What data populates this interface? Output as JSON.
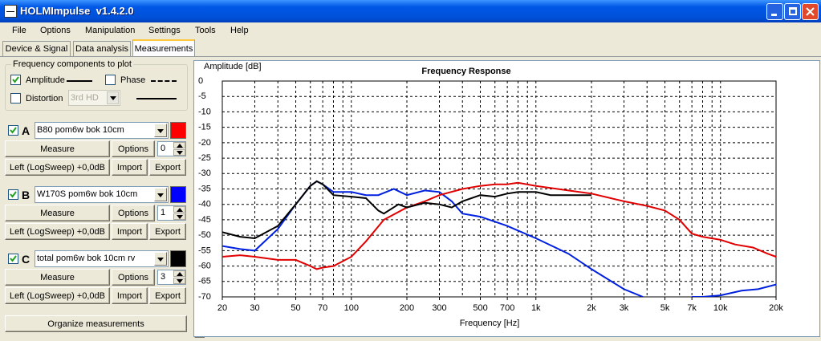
{
  "window": {
    "title": "HOLMImpulse  v1.4.2.0"
  },
  "menu": [
    "File",
    "Options",
    "Manipulation",
    "Settings",
    "Tools",
    "Help"
  ],
  "tabs": [
    "Device & Signal",
    "Data analysis",
    "Measurements"
  ],
  "components": {
    "title": "Frequency components to plot",
    "amplitude": "Amplitude",
    "phase": "Phase",
    "distortion": "Distortion",
    "distortion_type": "3rd HD"
  },
  "measurements": [
    {
      "letter": "A",
      "name": "B80 pom6w bok 10cm",
      "color": "#ff0000",
      "measure": "Measure",
      "options": "Options",
      "offset": 0,
      "source": "Left (LogSweep) +0,0dB",
      "import": "Import",
      "export": "Export"
    },
    {
      "letter": "B",
      "name": "W170S pom6w bok 10cm",
      "color": "#0000ff",
      "measure": "Measure",
      "options": "Options",
      "offset": 1,
      "source": "Left (LogSweep) +0,0dB",
      "import": "Import",
      "export": "Export"
    },
    {
      "letter": "C",
      "name": "total pom6w bok 10cm rv",
      "color": "#000000",
      "measure": "Measure",
      "options": "Options",
      "offset": 3,
      "source": "Left (LogSweep) +0,0dB",
      "import": "Import",
      "export": "Export"
    }
  ],
  "organize": "Organize measurements",
  "chart_data": {
    "type": "line",
    "title": "Frequency Response",
    "y_label": "Amplitude [dB]",
    "x_label": "Frequency [Hz]",
    "xscale": "log",
    "grid": true,
    "xlim": [
      20,
      20000
    ],
    "ylim": [
      -70,
      0
    ],
    "yticks": [
      0,
      -5,
      -10,
      -15,
      -20,
      -25,
      -30,
      -35,
      -40,
      -45,
      -50,
      -55,
      -60,
      -65,
      -70
    ],
    "xticks": [
      20,
      30,
      50,
      70,
      100,
      200,
      300,
      500,
      700,
      {
        "value": 1000,
        "label": "1k"
      },
      {
        "value": 2000,
        "label": "2k"
      },
      {
        "value": 3000,
        "label": "3k"
      },
      {
        "value": 5000,
        "label": "5k"
      },
      {
        "value": 7000,
        "label": "7k"
      },
      {
        "value": 10000,
        "label": "10k"
      },
      {
        "value": 20000,
        "label": "20k"
      }
    ],
    "xgrid": [
      20,
      30,
      40,
      50,
      60,
      70,
      80,
      90,
      100,
      200,
      300,
      400,
      500,
      600,
      700,
      800,
      900,
      1000,
      2000,
      3000,
      4000,
      5000,
      6000,
      7000,
      8000,
      9000,
      10000,
      20000
    ],
    "series": [
      {
        "color": "#e00000",
        "x": [
          20,
          25,
          30,
          40,
          50,
          60,
          65,
          70,
          80,
          100,
          120,
          150,
          200,
          250,
          300,
          400,
          500,
          600,
          700,
          800,
          1000,
          1500,
          2000,
          3000,
          4000,
          5000,
          6000,
          7000,
          8000,
          10000,
          12000,
          15000,
          18000,
          20000
        ],
        "values": [
          -57,
          -56.5,
          -57,
          -58,
          -58,
          -60,
          -61,
          -60.5,
          -60,
          -57,
          -52,
          -45,
          -41,
          -39,
          -37,
          -35,
          -34,
          -33.5,
          -33.5,
          -33,
          -34,
          -35.5,
          -36.5,
          -39,
          -40.5,
          -42,
          -45,
          -49.5,
          -50.5,
          -51.5,
          -53,
          -54,
          -56,
          -57
        ]
      },
      {
        "color": "#0020e0",
        "x": [
          20,
          25,
          30,
          40,
          50,
          60,
          65,
          70,
          80,
          100,
          120,
          140,
          170,
          200,
          250,
          300,
          350,
          400,
          500,
          700,
          1000,
          1500,
          2000,
          3000,
          3800,
          5000,
          7000,
          8000,
          10000,
          13000,
          16000,
          20000
        ],
        "values": [
          -53.5,
          -54.5,
          -55,
          -48,
          -40,
          -34,
          -32.5,
          -33.5,
          -36,
          -36,
          -37,
          -37,
          -35,
          -37,
          -35.5,
          -36,
          -39,
          -43,
          -44,
          -47,
          -51,
          -56,
          -61,
          -67.5,
          -70,
          null,
          -70,
          -70,
          -69.5,
          -68,
          -67.5,
          -66
        ]
      },
      {
        "color": "#000000",
        "x": [
          20,
          25,
          30,
          40,
          50,
          60,
          65,
          70,
          80,
          100,
          120,
          140,
          150,
          180,
          200,
          250,
          300,
          350,
          400,
          500,
          600,
          700,
          800,
          1000,
          1200,
          1500,
          2000
        ],
        "values": [
          -49,
          -50.5,
          -51,
          -47,
          -40,
          -34,
          -32.5,
          -33.5,
          -37,
          -37.5,
          -38,
          -42,
          -43,
          -40,
          -41,
          -39.5,
          -40,
          -41,
          -39,
          -37,
          -37.5,
          -36.5,
          -36,
          -36,
          -37,
          -37,
          -37
        ]
      }
    ]
  }
}
